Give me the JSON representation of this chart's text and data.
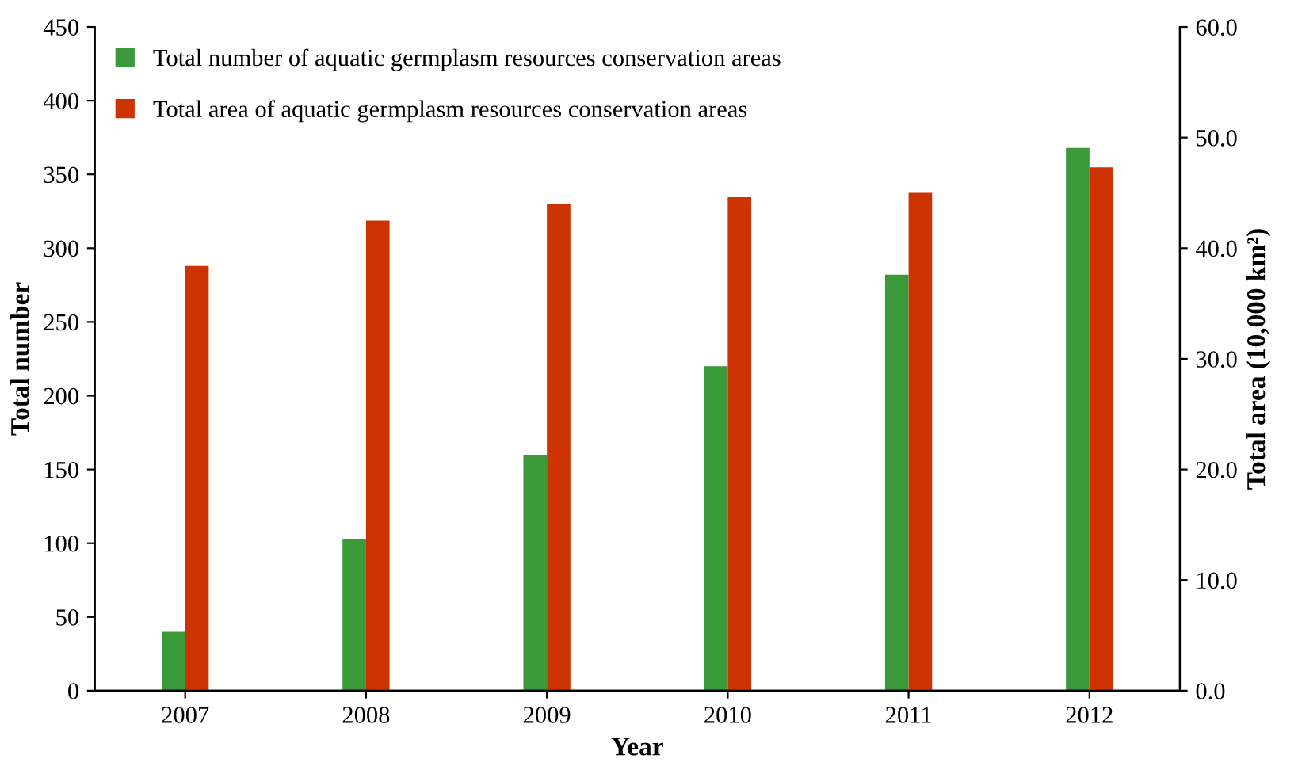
{
  "chart_data": {
    "type": "bar",
    "xlabel": "Year",
    "ylabel": "Total number",
    "y2label": "Total area (10,000 km²)",
    "categories": [
      "2007",
      "2008",
      "2009",
      "2010",
      "2011",
      "2012"
    ],
    "series": [
      {
        "name": "Total number of aquatic germplasm resources conservation areas",
        "color": "#3a9a3a",
        "values": [
          40,
          103,
          160,
          220,
          282,
          368
        ]
      },
      {
        "name": "Total area of aquatic germplasm resources conservation areas",
        "color": "#cc3300",
        "values": [
          38.4,
          42.5,
          44.0,
          44.6,
          45.0,
          47.3
        ],
        "axis": "y2"
      }
    ],
    "ylim": [
      0,
      450
    ],
    "yticks": [
      0,
      50,
      100,
      150,
      200,
      250,
      300,
      350,
      400,
      450
    ],
    "y2lim": [
      0,
      60
    ],
    "y2ticks": [
      {
        "value": 0,
        "label": "0.0"
      },
      {
        "value": 10,
        "label": "10.0"
      },
      {
        "value": 20,
        "label": "20.0"
      },
      {
        "value": 30,
        "label": "30.0"
      },
      {
        "value": 40,
        "label": "40.0"
      },
      {
        "value": 50,
        "label": "50.0"
      },
      {
        "value": 60,
        "label": "60.0"
      }
    ],
    "grid": false,
    "legend": "top left"
  }
}
